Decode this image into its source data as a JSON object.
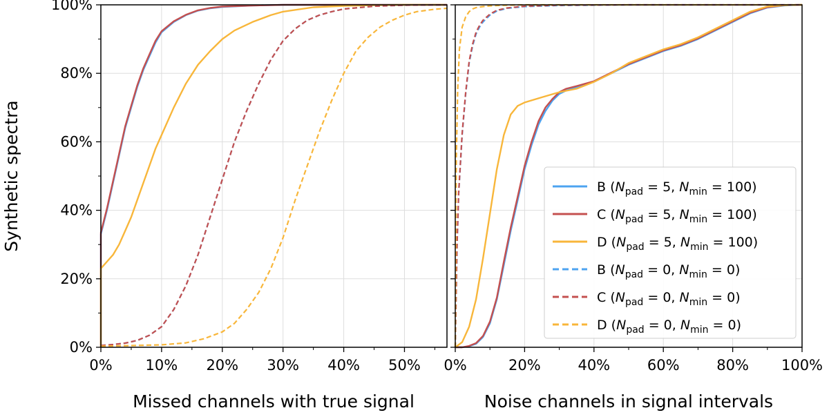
{
  "chart_data": [
    {
      "type": "line",
      "title": "",
      "xlabel": "Missed channels with true signal",
      "ylabel": "Synthetic spectra",
      "xlim": [
        0,
        57
      ],
      "ylim": [
        0,
        100
      ],
      "x_ticks": [
        "0%",
        "10%",
        "20%",
        "30%",
        "40%",
        "50%"
      ],
      "x_tick_values": [
        0,
        10,
        20,
        30,
        40,
        50
      ],
      "y_ticks": [
        "0%",
        "20%",
        "40%",
        "60%",
        "80%",
        "100%"
      ],
      "y_tick_values": [
        0,
        20,
        40,
        60,
        80,
        100
      ],
      "grid": true,
      "series": [
        {
          "name": "B",
          "style": "solid",
          "color": "#4da3f0",
          "x": [
            0,
            0,
            1,
            2,
            3,
            4,
            5,
            6,
            7,
            8,
            9,
            10,
            12,
            14,
            16,
            18,
            20,
            25,
            30,
            40,
            57
          ],
          "y": [
            0,
            33,
            40,
            48,
            56,
            64,
            70,
            76,
            81,
            85,
            89,
            92,
            95,
            97,
            98.3,
            99,
            99.4,
            99.8,
            100,
            100,
            100
          ]
        },
        {
          "name": "C",
          "style": "solid",
          "color": "#c4504f",
          "x": [
            0,
            0,
            1,
            2,
            3,
            4,
            5,
            6,
            7,
            8,
            9,
            10,
            12,
            14,
            16,
            18,
            20,
            25,
            30,
            40,
            57
          ],
          "y": [
            0,
            33.5,
            40.5,
            48.5,
            56.5,
            64.5,
            70.5,
            76.5,
            81.5,
            85.5,
            89.5,
            92.3,
            95.2,
            97.1,
            98.4,
            99.1,
            99.5,
            99.8,
            100,
            100,
            100
          ]
        },
        {
          "name": "D",
          "style": "solid",
          "color": "#f8b63a",
          "x": [
            0,
            0,
            1,
            2,
            3,
            4,
            5,
            6,
            7,
            8,
            9,
            10,
            12,
            14,
            16,
            18,
            20,
            22,
            25,
            28,
            30,
            35,
            40,
            45,
            50,
            57
          ],
          "y": [
            0,
            23,
            25,
            27,
            30,
            34,
            38,
            43,
            48,
            53,
            58,
            62,
            70,
            77,
            82.5,
            86.5,
            90,
            92.5,
            95,
            97,
            98,
            99.3,
            99.7,
            99.9,
            100,
            100
          ]
        },
        {
          "name": "B",
          "style": "dashed",
          "color": "#4da3f0",
          "x": [
            0,
            2,
            4,
            6,
            8,
            10,
            12,
            14,
            16,
            18,
            20,
            22,
            24,
            26,
            28,
            30,
            32,
            34,
            36,
            38,
            40,
            45,
            50,
            57
          ],
          "y": [
            0.5,
            0.8,
            1.2,
            2,
            3.5,
            6,
            11,
            18,
            27,
            38,
            49,
            60,
            69,
            77,
            84,
            89.5,
            93,
            95.5,
            97,
            98,
            98.8,
            99.6,
            99.9,
            100
          ]
        },
        {
          "name": "C",
          "style": "dashed",
          "color": "#c4504f",
          "x": [
            0,
            2,
            4,
            6,
            8,
            10,
            12,
            14,
            16,
            18,
            20,
            22,
            24,
            26,
            28,
            30,
            32,
            34,
            36,
            38,
            40,
            45,
            50,
            57
          ],
          "y": [
            0.5,
            0.8,
            1.2,
            2,
            3.5,
            6,
            11,
            18,
            27,
            38,
            49,
            60,
            69,
            77,
            84,
            89.5,
            93,
            95.5,
            97,
            98,
            98.8,
            99.6,
            99.9,
            100
          ]
        },
        {
          "name": "D",
          "style": "dashed",
          "color": "#f8b63a",
          "x": [
            0,
            5,
            10,
            14,
            17,
            20,
            22,
            24,
            26,
            28,
            30,
            32,
            34,
            36,
            38,
            40,
            42,
            44,
            46,
            48,
            50,
            52,
            55,
            57
          ],
          "y": [
            0.3,
            0.5,
            0.7,
            1.3,
            2.5,
            4.5,
            7,
            11,
            16,
            23,
            32,
            43,
            53,
            63,
            72,
            80,
            86.5,
            90.5,
            93.5,
            95.5,
            97,
            98,
            98.7,
            99
          ]
        }
      ]
    },
    {
      "type": "line",
      "title": "",
      "xlabel": "Noise channels in signal intervals",
      "ylabel": "",
      "xlim": [
        0,
        100
      ],
      "ylim": [
        0,
        100
      ],
      "x_ticks": [
        "0%",
        "20%",
        "40%",
        "60%",
        "80%",
        "100%"
      ],
      "x_tick_values": [
        0,
        20,
        40,
        60,
        80,
        100
      ],
      "y_tick_values": [
        0,
        20,
        40,
        60,
        80,
        100
      ],
      "grid": true,
      "legend_position": "lower-right",
      "legend": [
        {
          "series": "B",
          "npad": "5",
          "nmin": "100",
          "style": "solid",
          "color": "#4da3f0"
        },
        {
          "series": "C",
          "npad": "5",
          "nmin": "100",
          "style": "solid",
          "color": "#c4504f"
        },
        {
          "series": "D",
          "npad": "5",
          "nmin": "100",
          "style": "solid",
          "color": "#f8b63a"
        },
        {
          "series": "B",
          "npad": "0",
          "nmin": "0",
          "style": "dashed",
          "color": "#4da3f0"
        },
        {
          "series": "C",
          "npad": "0",
          "nmin": "0",
          "style": "dashed",
          "color": "#c4504f"
        },
        {
          "series": "D",
          "npad": "0",
          "nmin": "0",
          "style": "dashed",
          "color": "#f8b63a"
        }
      ],
      "series": [
        {
          "name": "B",
          "style": "solid",
          "color": "#4da3f0",
          "x": [
            0,
            2,
            4,
            6,
            8,
            10,
            12,
            14,
            16,
            18,
            20,
            22,
            24,
            26,
            28,
            30,
            32,
            35,
            40,
            45,
            50,
            55,
            60,
            65,
            70,
            75,
            80,
            85,
            90,
            95,
            100
          ],
          "y": [
            0,
            0,
            0.3,
            1,
            3,
            7,
            14,
            24,
            34,
            43,
            52,
            59,
            65,
            69,
            72,
            74,
            75,
            76,
            77.5,
            80,
            82.5,
            84.5,
            86.5,
            88,
            90,
            92.5,
            95,
            97.5,
            99.2,
            99.8,
            100
          ]
        },
        {
          "name": "C",
          "style": "solid",
          "color": "#c4504f",
          "x": [
            0,
            2,
            4,
            6,
            8,
            10,
            12,
            14,
            16,
            18,
            20,
            22,
            24,
            26,
            28,
            30,
            32,
            35,
            40,
            45,
            50,
            55,
            60,
            65,
            70,
            75,
            80,
            85,
            90,
            95,
            100
          ],
          "y": [
            0,
            0,
            0.4,
            1.2,
            3.3,
            7.5,
            14.5,
            25,
            35,
            44,
            53,
            60,
            66,
            70,
            72.5,
            74.5,
            75.5,
            76.3,
            77.7,
            80.2,
            82.7,
            84.7,
            86.7,
            88.2,
            90.2,
            92.7,
            95.2,
            97.7,
            99.3,
            99.9,
            100
          ]
        },
        {
          "name": "D",
          "style": "solid",
          "color": "#f8b63a",
          "x": [
            0,
            2,
            4,
            6,
            8,
            10,
            12,
            14,
            16,
            18,
            20,
            25,
            30,
            35,
            40,
            45,
            50,
            55,
            60,
            65,
            70,
            75,
            80,
            85,
            90,
            95,
            100
          ],
          "y": [
            0,
            1.5,
            6,
            14,
            26,
            39,
            52,
            62,
            68,
            70.5,
            71.5,
            73,
            74.5,
            75.5,
            77.5,
            80,
            83,
            85,
            87,
            88.5,
            90.5,
            93,
            95.5,
            98,
            99.5,
            99.9,
            100
          ]
        },
        {
          "name": "B",
          "style": "dashed",
          "color": "#4da3f0",
          "x": [
            0,
            0.5,
            1,
            2,
            3,
            4,
            5,
            6,
            7,
            8,
            10,
            12,
            15,
            20,
            30,
            50,
            100
          ],
          "y": [
            0,
            29,
            45,
            62,
            74,
            83,
            88,
            91.5,
            93.5,
            95,
            97,
            98.2,
            99,
            99.5,
            99.8,
            100,
            100
          ]
        },
        {
          "name": "C",
          "style": "dashed",
          "color": "#c4504f",
          "x": [
            0,
            0.5,
            1,
            2,
            3,
            4,
            5,
            6,
            7,
            8,
            10,
            12,
            15,
            20,
            30,
            50,
            100
          ],
          "y": [
            0,
            29.5,
            45.5,
            62.5,
            74.5,
            83.5,
            88.5,
            92,
            94,
            95.5,
            97.3,
            98.4,
            99.1,
            99.6,
            99.9,
            100,
            100
          ]
        },
        {
          "name": "D",
          "style": "dashed",
          "color": "#f8b63a",
          "x": [
            0,
            0.3,
            0.7,
            1.2,
            2,
            3,
            4,
            5,
            6,
            8,
            10,
            15,
            20,
            30,
            100
          ],
          "y": [
            0,
            55,
            75,
            87,
            93.5,
            96.5,
            98,
            98.8,
            99.2,
            99.5,
            99.7,
            99.9,
            100,
            100,
            100
          ]
        }
      ]
    }
  ]
}
